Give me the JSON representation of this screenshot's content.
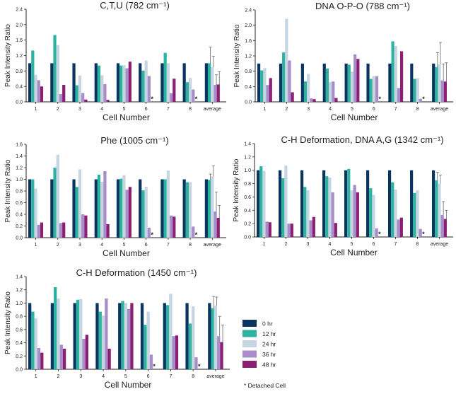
{
  "legend": {
    "series": [
      {
        "name": "0 hr",
        "color": "#0b3561"
      },
      {
        "name": "12 hr",
        "color": "#2bb3a0"
      },
      {
        "name": "24 hr",
        "color": "#c6d5e2"
      },
      {
        "name": "36 hr",
        "color": "#a98dc9"
      },
      {
        "name": "48 hr",
        "color": "#8b1f73"
      }
    ],
    "note": "* Detached Cell"
  },
  "chart_data": [
    {
      "type": "bar",
      "title": "C,T,U (782 cm⁻¹)",
      "xlabel": "Cell Number",
      "ylabel": "Peak Intensity Ratio",
      "ylim": [
        0,
        2.4
      ],
      "yticks": [
        "0.0",
        "0.4",
        "0.8",
        "1.2",
        "1.6",
        "2.0",
        "2.4"
      ],
      "categories": [
        "1",
        "2",
        "3",
        "4",
        "5",
        "6",
        "7",
        "8",
        "average"
      ],
      "series": [
        {
          "name": "0 hr",
          "values": [
            1,
            1,
            1,
            1,
            1,
            1,
            1,
            1,
            1
          ]
        },
        {
          "name": "12 hr",
          "values": [
            1.33,
            1.73,
            0.43,
            0.94,
            0.94,
            0.81,
            1.27,
            0.51,
            1.0
          ]
        },
        {
          "name": "24 hr",
          "values": [
            0.7,
            1.47,
            0.68,
            0.69,
            0.95,
            1.07,
            1.0,
            0.62,
            0.9
          ]
        },
        {
          "name": "36 hr",
          "values": [
            0.56,
            0.2,
            0.23,
            0.46,
            0.87,
            0.67,
            0.22,
            0.32,
            0.44
          ]
        },
        {
          "name": "48 hr",
          "values": [
            0.4,
            0.44,
            0.06,
            0.05,
            1.04,
            null,
            0.6,
            null,
            0.45
          ]
        }
      ],
      "average_error": [
        0,
        0.42,
        0.28,
        0.26,
        0.33
      ],
      "detached_marker": "*",
      "detached_cells": [
        "6",
        "8"
      ]
    },
    {
      "type": "bar",
      "title": "DNA O-P-O (788 cm⁻¹)",
      "xlabel": "Cell Number",
      "ylabel": "Peak Intensity Ratio",
      "ylim": [
        0,
        2.4
      ],
      "yticks": [
        "0.0",
        "0.4",
        "0.8",
        "1.2",
        "1.6",
        "2.0",
        "2.4"
      ],
      "categories": [
        "1",
        "2",
        "3",
        "4",
        "5",
        "6",
        "7",
        "8",
        "average"
      ],
      "series": [
        {
          "name": "0 hr",
          "values": [
            1,
            1,
            1,
            1,
            1,
            1,
            1,
            1,
            1
          ]
        },
        {
          "name": "12 hr",
          "values": [
            0.82,
            1.29,
            0.53,
            0.87,
            0.97,
            0.6,
            1.58,
            0.6,
            0.91
          ]
        },
        {
          "name": "24 hr",
          "values": [
            0.88,
            2.17,
            0.73,
            0.52,
            0.79,
            0.67,
            1.46,
            0.62,
            0.98
          ]
        },
        {
          "name": "36 hr",
          "values": [
            0.44,
            1.08,
            0.09,
            0.53,
            1.24,
            0.67,
            0.36,
            0.08,
            0.56
          ]
        },
        {
          "name": "48 hr",
          "values": [
            0.62,
            0.25,
            0.07,
            0.1,
            1.12,
            null,
            1.32,
            null,
            0.53
          ]
        }
      ],
      "average_error": [
        0,
        0.37,
        0.57,
        0.43,
        0.49
      ],
      "detached_marker": "*",
      "detached_cells": [
        "6",
        "8"
      ]
    },
    {
      "type": "bar",
      "title": "Phe (1005 cm⁻¹)",
      "xlabel": "Cell Number",
      "ylabel": "Peak Intensity Ratio",
      "ylim": [
        0,
        1.6
      ],
      "yticks": [
        "0.0",
        "0.2",
        "0.4",
        "0.6",
        "0.8",
        "1.0",
        "1.2",
        "1.4",
        "1.6"
      ],
      "categories": [
        "1",
        "2",
        "3",
        "4",
        "5",
        "6",
        "7",
        "8",
        "average"
      ],
      "series": [
        {
          "name": "0 hr",
          "values": [
            1,
            1,
            1,
            1,
            1,
            1,
            1,
            1,
            1
          ]
        },
        {
          "name": "12 hr",
          "values": [
            1.0,
            1.2,
            0.87,
            1.08,
            1.01,
            0.81,
            1.0,
            0.95,
            0.99
          ]
        },
        {
          "name": "24 hr",
          "values": [
            0.84,
            1.42,
            1.17,
            0.96,
            1.07,
            0.87,
            1.15,
            0.95,
            1.05
          ]
        },
        {
          "name": "36 hr",
          "values": [
            0.22,
            0.25,
            0.4,
            1.14,
            0.82,
            0.17,
            0.38,
            0.19,
            0.45
          ]
        },
        {
          "name": "48 hr",
          "values": [
            0.26,
            0.26,
            0.38,
            0.23,
            0.87,
            null,
            0.36,
            null,
            0.34
          ]
        }
      ],
      "average_error": [
        0,
        0.1,
        0.18,
        0.33,
        0.21
      ],
      "detached_marker": "*",
      "detached_cells": [
        "6",
        "8"
      ]
    },
    {
      "type": "bar",
      "title": "C-H Deformation, DNA A,G (1342 cm⁻¹)",
      "xlabel": "Cell Number",
      "ylabel": "Peak Intensity Ratio",
      "ylim": [
        0,
        1.4
      ],
      "yticks": [
        "0.0",
        "0.2",
        "0.4",
        "0.6",
        "0.8",
        "1.0",
        "1.2",
        "1.4"
      ],
      "categories": [
        "1",
        "2",
        "3",
        "4",
        "5",
        "6",
        "7",
        "8",
        "average"
      ],
      "series": [
        {
          "name": "0 hr",
          "values": [
            1,
            1,
            1,
            1,
            1,
            1,
            1,
            1,
            1
          ]
        },
        {
          "name": "12 hr",
          "values": [
            1.06,
            0.88,
            0.75,
            0.91,
            1.02,
            0.73,
            0.82,
            0.66,
            0.85
          ]
        },
        {
          "name": "24 hr",
          "values": [
            0.99,
            1.07,
            0.7,
            0.89,
            0.7,
            0.63,
            0.71,
            0.7,
            0.8
          ]
        },
        {
          "name": "36 hr",
          "values": [
            0.23,
            0.2,
            0.25,
            0.67,
            0.78,
            0.13,
            0.26,
            0.12,
            0.33
          ]
        },
        {
          "name": "48 hr",
          "values": [
            0.22,
            0.2,
            0.3,
            0.21,
            0.67,
            null,
            0.29,
            null,
            0.27
          ]
        }
      ],
      "average_error": [
        0,
        0.12,
        0.13,
        0.2,
        0.13
      ],
      "detached_marker": "*",
      "detached_cells": [
        "6",
        "8"
      ]
    },
    {
      "type": "bar",
      "title": "C-H Deformation (1450 cm⁻¹)",
      "xlabel": "Cell Number",
      "ylabel": "Peak Intensity Ratio",
      "ylim": [
        0,
        1.4
      ],
      "yticks": [
        "0.0",
        "0.2",
        "0.4",
        "0.6",
        "0.8",
        "1.0",
        "1.2",
        "1.4"
      ],
      "categories": [
        "1",
        "2",
        "3",
        "4",
        "5",
        "6",
        "7",
        "8",
        "average"
      ],
      "series": [
        {
          "name": "0 hr",
          "values": [
            1,
            1,
            1,
            1,
            1,
            1,
            1,
            1,
            1
          ]
        },
        {
          "name": "12 hr",
          "values": [
            0.87,
            1.24,
            1.05,
            0.87,
            1.03,
            0.67,
            0.97,
            0.69,
            0.92
          ]
        },
        {
          "name": "24 hr",
          "values": [
            0.77,
            1.07,
            1.06,
            0.81,
            1.0,
            0.87,
            1.14,
            0.95,
            0.96
          ]
        },
        {
          "name": "36 hr",
          "values": [
            0.32,
            0.37,
            0.46,
            1.07,
            0.91,
            0.22,
            0.5,
            0.18,
            0.5
          ]
        },
        {
          "name": "48 hr",
          "values": [
            0.25,
            0.31,
            0.52,
            0.31,
            1.0,
            null,
            0.51,
            null,
            0.41
          ]
        }
      ],
      "average_error": [
        0,
        0.18,
        0.13,
        0.3,
        0.26
      ],
      "detached_marker": "*",
      "detached_cells": [
        "6",
        "8"
      ]
    }
  ]
}
